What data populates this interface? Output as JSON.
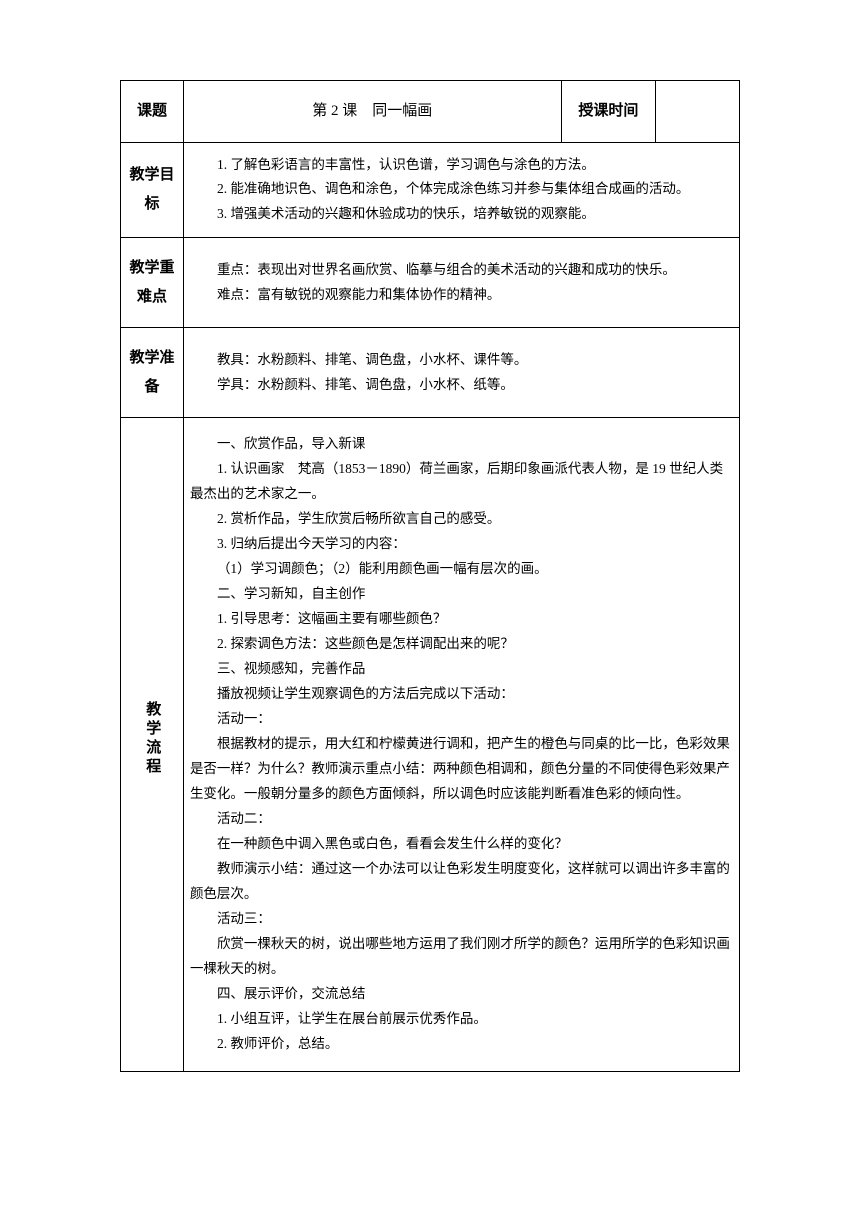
{
  "header": {
    "topic_label": "课题",
    "topic_value": "第 2 课　同一幅画",
    "time_label": "授课时间",
    "time_value": ""
  },
  "sections": {
    "objectives": {
      "label": "教学目标",
      "items": [
        "1. 了解色彩语言的丰富性，认识色谱，学习调色与涂色的方法。",
        "2. 能准确地识色、调色和涂色，个体完成涂色练习并参与集体组合成画的活动。",
        "3. 增强美术活动的兴趣和休验成功的快乐，培养敏锐的观察能。"
      ]
    },
    "keypoints": {
      "label": "教学重难点",
      "key": "重点：表现出对世界名画欣赏、临摹与组合的美术活动的兴趣和成功的快乐。",
      "difficulty": "难点：富有敏锐的观察能力和集体协作的精神。"
    },
    "prep": {
      "label": "教学准备",
      "teacher": "教具：水粉颜料、排笔、调色盘，小水杯、课件等。",
      "student": "学具：水粉颜料、排笔、调色盘，小水杯、纸等。"
    },
    "process": {
      "label": "教学流程",
      "blocks": [
        "一、欣赏作品，导入新课",
        "1. 认识画家　梵高（1853－1890）荷兰画家，后期印象画派代表人物，是 19 世纪人类最杰出的艺术家之一。",
        "2. 赏析作品，学生欣赏后畅所欲言自己的感受。",
        "3. 归纳后提出今天学习的内容：",
        "（1）学习调颜色；（2）能利用颜色画一幅有层次的画。",
        "二、学习新知，自主创作",
        "1. 引导思考：这幅画主要有哪些颜色？",
        "2. 探索调色方法：这些颜色是怎样调配出来的呢？",
        "三、视频感知，完善作品",
        "播放视频让学生观察调色的方法后完成以下活动：",
        "活动一：",
        "根据教材的提示，用大红和柠檬黄进行调和，把产生的橙色与同桌的比一比，色彩效果是否一样？为什么？教师演示重点小结：两种颜色相调和，颜色分量的不同使得色彩效果产生变化。一般朝分量多的颜色方面倾斜，所以调色时应该能判断看准色彩的倾向性。",
        "活动二：",
        "在一种颜色中调入黑色或白色，看看会发生什么样的变化？",
        "教师演示小结：通过这一个办法可以让色彩发生明度变化，这样就可以调出许多丰富的颜色层次。",
        "活动三：",
        "欣赏一棵秋天的树，说出哪些地方运用了我们刚才所学的颜色？运用所学的色彩知识画一棵秋天的树。",
        "四、展示评价，交流总结",
        "1. 小组互评，让学生在展台前展示优秀作品。",
        "2. 教师评价，总结。"
      ]
    }
  }
}
